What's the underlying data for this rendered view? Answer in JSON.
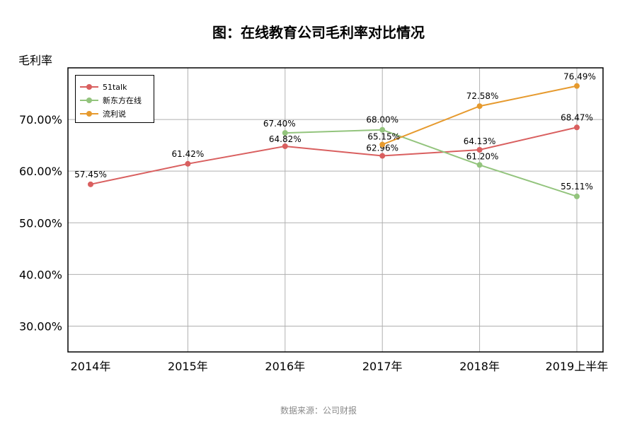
{
  "title": "图：在线教育公司毛利率对比情况",
  "source": "数据来源：公司财报",
  "chart_data": {
    "type": "line",
    "ylabel": "毛利率",
    "xlabel": "",
    "categories": [
      "2014年",
      "2015年",
      "2016年",
      "2017年",
      "2018年",
      "2019上半年"
    ],
    "ylim": [
      25,
      80
    ],
    "yticks": [
      30,
      40,
      50,
      60,
      70
    ],
    "ytick_labels": [
      "30.00%",
      "40.00%",
      "50.00%",
      "60.00%",
      "70.00%"
    ],
    "grid": true,
    "legend_position": "top-left",
    "series": [
      {
        "name": "51talk",
        "color": "#d95f5f",
        "values": [
          57.45,
          61.42,
          64.82,
          62.96,
          64.13,
          68.47
        ],
        "labels": [
          "57.45%",
          "61.42%",
          "64.82%",
          "62.96%",
          "64.13%",
          "68.47%"
        ]
      },
      {
        "name": "新东方在线",
        "color": "#93c47d",
        "values": [
          null,
          null,
          67.4,
          68.0,
          61.2,
          55.11
        ],
        "labels": [
          null,
          null,
          "67.40%",
          "68.00%",
          "61.20%",
          "55.11%"
        ]
      },
      {
        "name": "流利说",
        "color": "#e69a2e",
        "values": [
          null,
          null,
          null,
          65.15,
          72.58,
          76.49
        ],
        "labels": [
          null,
          null,
          null,
          "65.15%",
          "72.58%",
          "76.49%"
        ]
      }
    ]
  }
}
